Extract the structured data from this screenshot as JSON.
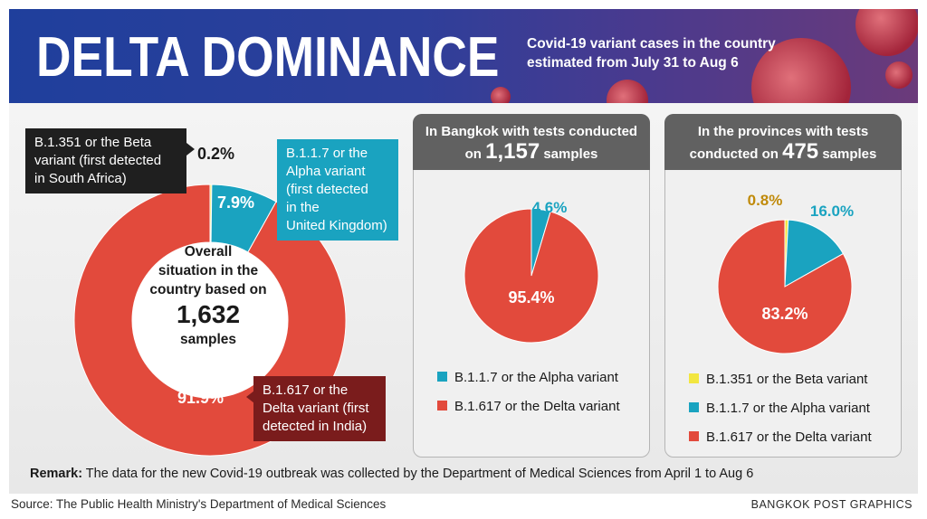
{
  "header": {
    "title": "DELTA DOMINANCE",
    "subtitle": "Covid-19 variant cases in the country estimated from July 31 to Aug 6"
  },
  "colors": {
    "beta": "#f2e640",
    "alpha": "#1aa3c0",
    "delta": "#e24a3c",
    "header_bg": "#2c3f9a",
    "panel_head": "#616161"
  },
  "chart_data": [
    {
      "type": "pie",
      "variant": "donut",
      "center_text": {
        "line1": "Overall",
        "line2": "situation in the",
        "line3": "country based on",
        "number": "1,632",
        "unit": "samples"
      },
      "slices": [
        {
          "label": "B.1.351 or the Beta variant (first detected in South Africa)",
          "value": 0.2,
          "display": "0.2%",
          "color": "#f2e640"
        },
        {
          "label": "B.1.1.7 or the Alpha variant (first detected in the United Kingdom)",
          "value": 7.9,
          "display": "7.9%",
          "color": "#1aa3c0"
        },
        {
          "label": "B.1.617 or the Delta variant (first detected in India)",
          "value": 91.9,
          "display": "91.9%",
          "color": "#e24a3c"
        }
      ]
    },
    {
      "type": "pie",
      "title_pre": "In Bangkok with tests conducted",
      "title_on": "on",
      "title_num": "1,157",
      "title_post": "samples",
      "slices": [
        {
          "label": "B.1.1.7 or the Alpha variant",
          "value": 4.6,
          "display": "4.6%",
          "color": "#1aa3c0"
        },
        {
          "label": "B.1.617 or the Delta variant",
          "value": 95.4,
          "display": "95.4%",
          "color": "#e24a3c"
        }
      ]
    },
    {
      "type": "pie",
      "title_pre": "In the provinces with tests",
      "title_on": "conducted on",
      "title_num": "475",
      "title_post": "samples",
      "slices": [
        {
          "label": "B.1.351 or the Beta variant",
          "value": 0.8,
          "display": "0.8%",
          "color": "#f2e640"
        },
        {
          "label": "B.1.1.7 or the Alpha variant",
          "value": 16.0,
          "display": "16.0%",
          "color": "#1aa3c0"
        },
        {
          "label": "B.1.617 or the Delta variant",
          "value": 83.2,
          "display": "83.2%",
          "color": "#e24a3c"
        }
      ]
    }
  ],
  "callouts": {
    "beta": [
      "B.1.351 or the Beta",
      "variant (first detected",
      "in South Africa)"
    ],
    "alpha": [
      "B.1.1.7 or the",
      "Alpha variant",
      "(first detected",
      "in the",
      "United Kingdom)"
    ],
    "delta": [
      "B.1.617 or the",
      "Delta variant (first",
      "detected in India)"
    ]
  },
  "footer": {
    "remark_label": "Remark:",
    "remark_text": " The data for the new Covid-19 outbreak was collected by the Department of Medical Sciences from April 1 to Aug 6",
    "source": "Source: The Public Health Ministry's Department of Medical Sciences",
    "credit": "BANGKOK POST GRAPHICS"
  }
}
